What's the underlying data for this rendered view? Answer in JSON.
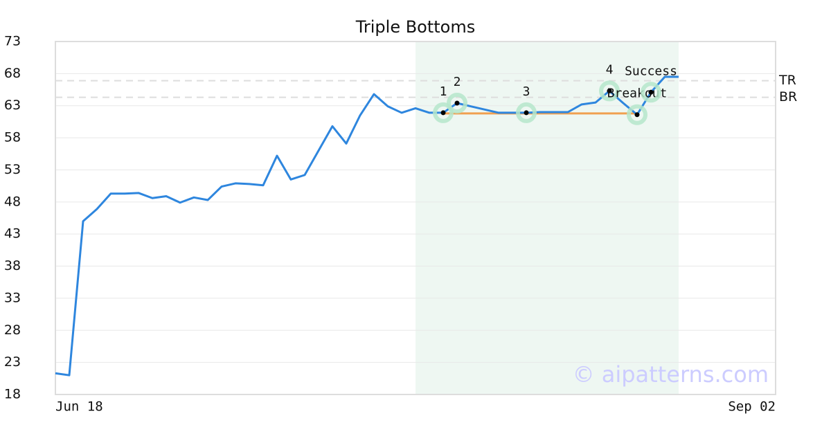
{
  "chart_data": {
    "type": "line",
    "title": "Triple Bottoms",
    "categories": [
      "Jun 18",
      null,
      null,
      null,
      null,
      null,
      null,
      null,
      null,
      null,
      null,
      null,
      null,
      null,
      null,
      null,
      null,
      null,
      null,
      null,
      null,
      null,
      null,
      null,
      null,
      null,
      null,
      null,
      null,
      null,
      null,
      null,
      null,
      null,
      null,
      null,
      null,
      null,
      null,
      null,
      null,
      null,
      null,
      null,
      null,
      null,
      null,
      null,
      null,
      null,
      null,
      null,
      "Sep 02"
    ],
    "values": [
      21.3,
      21.0,
      45.0,
      46.9,
      49.3,
      49.3,
      49.4,
      48.6,
      48.9,
      47.9,
      48.7,
      48.3,
      50.4,
      50.9,
      50.8,
      50.6,
      55.2,
      51.5,
      52.2,
      56.0,
      59.8,
      57.1,
      61.5,
      64.8,
      62.9,
      61.9,
      62.6,
      61.9,
      61.9,
      63.4,
      62.9,
      62.4,
      61.9,
      61.9,
      61.9,
      62.0,
      62.0,
      62.0,
      63.2,
      63.5,
      65.3,
      63.4,
      61.6,
      65.1,
      67.5,
      67.5,
      null,
      null,
      null,
      null,
      null,
      null,
      null
    ],
    "color": "#2e86de",
    "ylim": [
      18,
      73
    ],
    "yticks": [
      18,
      23,
      28,
      33,
      38,
      43,
      48,
      53,
      58,
      63,
      68,
      73
    ],
    "grid": true,
    "highlight": {
      "from": 26,
      "to": 45,
      "color": "#eef7f2"
    },
    "support": {
      "value": 61.8,
      "from": 28,
      "to": 42,
      "color": "#f0a050"
    },
    "levels": [
      {
        "label": "TR",
        "value": 66.9
      },
      {
        "label": "BR",
        "value": 64.3
      }
    ],
    "points": [
      {
        "label": "1",
        "index": 28
      },
      {
        "label": "2",
        "index": 29
      },
      {
        "label": "3",
        "index": 34
      },
      {
        "label": "4",
        "index": 40
      },
      {
        "label": "Breakout",
        "index": 42
      },
      {
        "label": "Success",
        "index": 43
      }
    ],
    "watermark": "© aipatterns.com"
  }
}
